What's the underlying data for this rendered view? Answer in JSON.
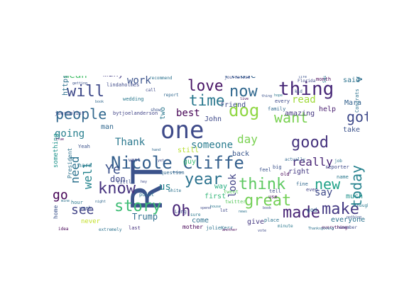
{
  "words": [
    {
      "text": "RT",
      "color": "#3b528b"
    },
    {
      "text": "Nicole_Cliffe",
      "color": "#35608d"
    },
    {
      "text": "one",
      "color": "#3e4a89"
    },
    {
      "text": "dog",
      "color": "#90d743"
    },
    {
      "text": "thing",
      "color": "#482878"
    },
    {
      "text": "now",
      "color": "#31688e"
    },
    {
      "text": "love",
      "color": "#471365"
    },
    {
      "text": "time",
      "color": "#2a788e"
    },
    {
      "text": "will",
      "color": "#3e4989"
    },
    {
      "text": "people",
      "color": "#31688e"
    },
    {
      "text": "know",
      "color": "#46327e"
    },
    {
      "text": "story",
      "color": "#3dbc74"
    },
    {
      "text": "year",
      "color": "#2c728e"
    },
    {
      "text": "think",
      "color": "#5ec962"
    },
    {
      "text": "great",
      "color": "#73d056"
    },
    {
      "text": "good",
      "color": "#46337e"
    },
    {
      "text": "want",
      "color": "#7ad151"
    },
    {
      "text": "made",
      "color": "#482475"
    },
    {
      "text": "make",
      "color": "#443983"
    },
    {
      "text": "today",
      "color": "#26828e"
    },
    {
      "text": "new",
      "color": "#1fa187"
    },
    {
      "text": "got",
      "color": "#3e4989"
    },
    {
      "text": "Oh",
      "color": "#482677"
    },
    {
      "text": "see",
      "color": "#414487"
    },
    {
      "text": "go",
      "color": "#440154"
    },
    {
      "text": "need",
      "color": "#2c728e"
    },
    {
      "text": "well",
      "color": "#25848e"
    },
    {
      "text": "Ye",
      "color": "#3b528b"
    },
    {
      "text": "day",
      "color": "#7ad151"
    },
    {
      "text": "really",
      "color": "#482475"
    },
    {
      "text": "read",
      "color": "#a0da39"
    },
    {
      "text": "Thank",
      "color": "#2a788e"
    },
    {
      "text": "someone",
      "color": "#297b8e"
    },
    {
      "text": "best",
      "color": "#440154"
    },
    {
      "text": "work",
      "color": "#3b528b"
    },
    {
      "text": "mean",
      "color": "#4ac16d"
    },
    {
      "text": "us",
      "color": "#25848e"
    },
    {
      "text": "going",
      "color": "#277f8e"
    },
    {
      "text": "say",
      "color": "#3e4989"
    },
    {
      "text": "look",
      "color": "#414487"
    },
    {
      "text": "Trump",
      "color": "#2e6e8e"
    },
    {
      "text": "Please",
      "color": "#34618d"
    },
    {
      "text": "ve",
      "color": "#2e6e8e"
    },
    {
      "text": "don",
      "color": "#3f4788"
    },
    {
      "text": "many",
      "color": "#433d84"
    },
    {
      "text": "John",
      "color": "#3e4989"
    },
    {
      "text": "amazing",
      "color": "#453781"
    },
    {
      "text": "take",
      "color": "#3b528b"
    },
    {
      "text": "much",
      "color": "#20928c"
    },
    {
      "text": "everyone",
      "color": "#2c728e"
    },
    {
      "text": "still",
      "color": "#b5de2b"
    },
    {
      "text": "back",
      "color": "#39568c"
    },
    {
      "text": "right",
      "color": "#443983"
    },
    {
      "text": "help",
      "color": "#481d6f"
    },
    {
      "text": "Mara",
      "color": "#34618d"
    },
    {
      "text": "said",
      "color": "#2c728e"
    },
    {
      "text": "guy",
      "color": "#3dbc74"
    },
    {
      "text": "come",
      "color": "#2d708e"
    },
    {
      "text": "give",
      "color": "#453882"
    },
    {
      "text": "first",
      "color": "#35b779"
    },
    {
      "text": "way",
      "color": "#27ad81"
    },
    {
      "text": "man",
      "color": "#31688e"
    },
    {
      "text": "https",
      "color": "#2d708e"
    },
    {
      "text": "friend",
      "color": "#3e4a89"
    },
    {
      "text": "two",
      "color": "#2a788e"
    },
    {
      "text": "mother",
      "color": "#440154"
    },
    {
      "text": "never",
      "color": "#c2df23"
    },
    {
      "text": "something",
      "color": "#1f948c"
    },
    {
      "text": "home",
      "color": "#3b528b"
    },
    {
      "text": "President",
      "color": "#2c728e"
    },
    {
      "text": "lindaholmes",
      "color": "#3e4a89"
    },
    {
      "text": "bytjoelanderson",
      "color": "#414487"
    },
    {
      "text": "wedding",
      "color": "#2a788e"
    },
    {
      "text": "twitter",
      "color": "#5ec962"
    },
    {
      "text": "feel",
      "color": "#3b528b"
    },
    {
      "text": "month",
      "color": "#440154"
    },
    {
      "text": "Congrats",
      "color": "#2c728e"
    },
    {
      "text": "last",
      "color": "#46327e"
    },
    {
      "text": "journalist",
      "color": "#3e4989"
    },
    {
      "text": "Yeah",
      "color": "#3b528b"
    },
    {
      "text": "hard",
      "color": "#2a788e"
    },
    {
      "text": "old",
      "color": "#440154"
    },
    {
      "text": "fine",
      "color": "#31688e"
    },
    {
      "text": "even",
      "color": "#414487"
    },
    {
      "text": "place",
      "color": "#2c728e"
    },
    {
      "text": "reporter",
      "color": "#3e4989"
    },
    {
      "text": "name",
      "color": "#2a788e"
    },
    {
      "text": "little",
      "color": "#3b528b"
    },
    {
      "text": "question",
      "color": "#31688e"
    },
    {
      "text": "idea",
      "color": "#440154"
    },
    {
      "text": "tell",
      "color": "#3e4a89"
    },
    {
      "text": "point",
      "color": "#2c728e"
    },
    {
      "text": "week",
      "color": "#3b528b"
    },
    {
      "text": "hour",
      "color": "#2a788e"
    },
    {
      "text": "every",
      "color": "#3e4989"
    },
    {
      "text": "family",
      "color": "#31688e"
    },
    {
      "text": "recommend",
      "color": "#2c728e"
    },
    {
      "text": "journalism",
      "color": "#3e4a89"
    },
    {
      "text": "minute",
      "color": "#2a788e"
    },
    {
      "text": "big",
      "color": "#3b528b"
    },
    {
      "text": "use",
      "color": "#440154"
    },
    {
      "text": "god",
      "color": "#31688e"
    },
    {
      "text": "went",
      "color": "#3e4989"
    },
    {
      "text": "white",
      "color": "#2c728e"
    },
    {
      "text": "show",
      "color": "#3b528b"
    },
    {
      "text": "thought",
      "color": "#2a788e"
    },
    {
      "text": "remember",
      "color": "#3e4a89"
    },
    {
      "text": "actually",
      "color": "#31688e"
    },
    {
      "text": "extremely",
      "color": "#2c728e"
    },
    {
      "text": "Long",
      "color": "#3e4989"
    },
    {
      "text": "kid",
      "color": "#3b528b"
    },
    {
      "text": "tweet",
      "color": "#5ec962"
    },
    {
      "text": "everything",
      "color": "#440154"
    },
    {
      "text": "call",
      "color": "#3e4a89"
    },
    {
      "text": "report",
      "color": "#31688e"
    },
    {
      "text": "job",
      "color": "#2c728e"
    },
    {
      "text": "Saudi",
      "color": "#2a788e"
    },
    {
      "text": "Florida",
      "color": "#3e4989"
    },
    {
      "text": "nothing",
      "color": "#3b528b"
    },
    {
      "text": "true",
      "color": "#440154"
    },
    {
      "text": "vote",
      "color": "#3e4a89"
    },
    {
      "text": "Thanksgiving",
      "color": "#2c728e"
    },
    {
      "text": "hand",
      "color": "#31688e"
    },
    {
      "text": "sure",
      "color": "#2a788e"
    },
    {
      "text": "without",
      "color": "#3e4989"
    },
    {
      "text": "life",
      "color": "#3b528b"
    },
    {
      "text": "jolieKerr",
      "color": "#2c728e"
    },
    {
      "text": "spend",
      "color": "#3e4a89"
    },
    {
      "text": "night",
      "color": "#31688e"
    },
    {
      "text": "house",
      "color": "#2a788e"
    },
    {
      "text": "another",
      "color": "#440154"
    },
    {
      "text": "lot",
      "color": "#3e4989"
    },
    {
      "text": "getting",
      "color": "#3b528b"
    },
    {
      "text": "mine",
      "color": "#2c728e"
    },
    {
      "text": "book",
      "color": "#3e4a89"
    },
    {
      "text": "book",
      "color": "#31688e"
    },
    {
      "text": "hope",
      "color": "#2a788e"
    },
    {
      "text": "live",
      "color": "#440154"
    },
    {
      "text": "yet",
      "color": "#3e4989"
    },
    {
      "text": "thing",
      "color": "#3b528b"
    },
    {
      "text": "news",
      "color": "#2c728e"
    },
    {
      "text": "hey",
      "color": "#3e4a89"
    }
  ]
}
